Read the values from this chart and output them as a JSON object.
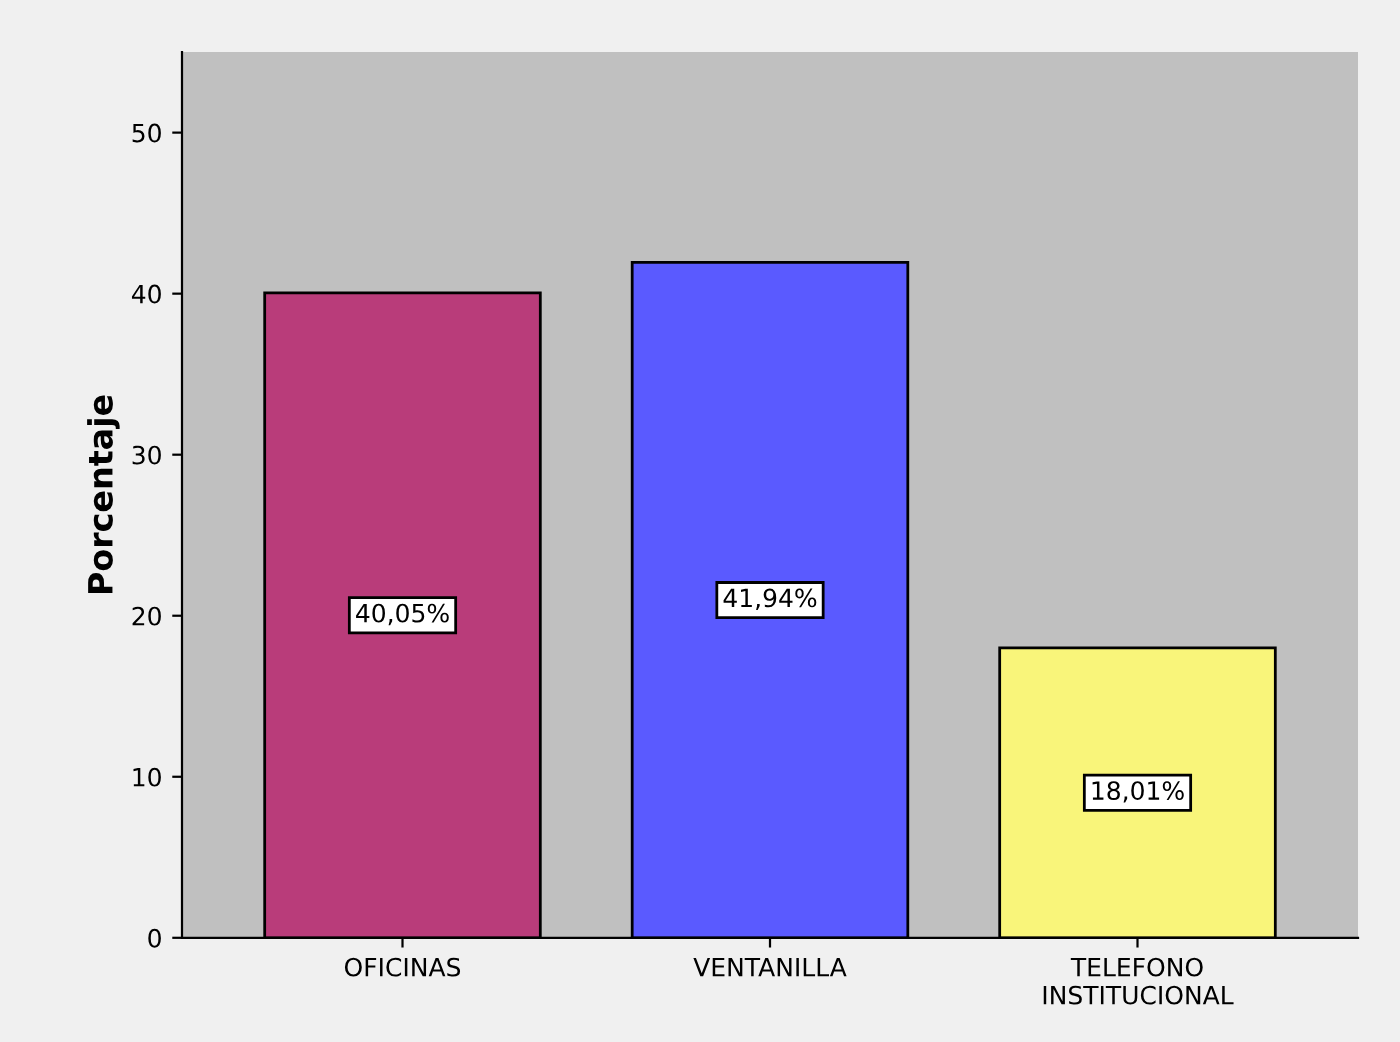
{
  "chart_data": {
    "type": "bar",
    "ylabel": "Porcentaje",
    "categories": [
      "OFICINAS",
      "VENTANILLA",
      "TELEFONO\nINSTITUCIONAL"
    ],
    "values": [
      40.05,
      41.94,
      18.01
    ],
    "colors": [
      "#b93c7a",
      "#5a5aff",
      "#f9f57a"
    ],
    "value_labels": [
      "40,05%",
      "41,94%",
      "18,01%"
    ],
    "ylim": [
      0,
      55
    ],
    "yticks": [
      0,
      10,
      20,
      30,
      40,
      50
    ],
    "grid": false
  }
}
